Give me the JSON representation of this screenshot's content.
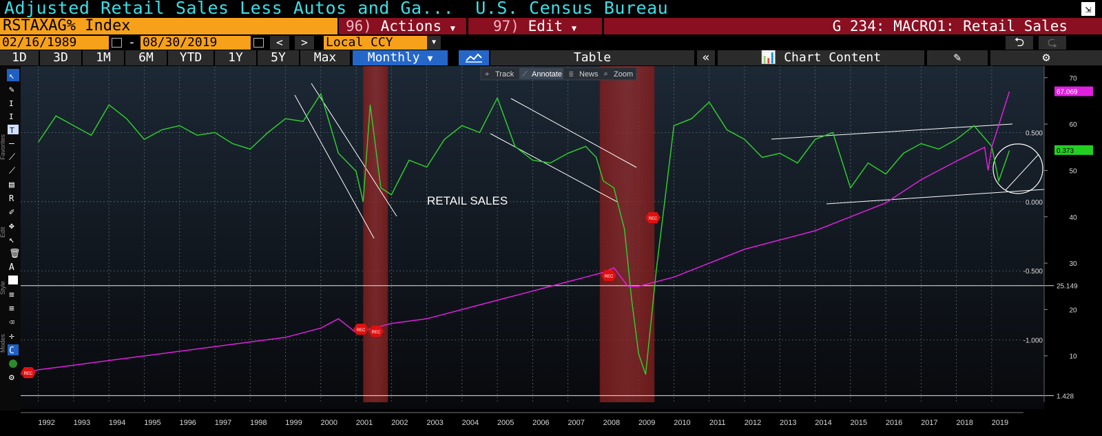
{
  "header": {
    "title": "Adjusted Retail Sales Less Autos and Ga...  U.S. Census Bureau",
    "corner_icon": "export-icon"
  },
  "toolbar": {
    "ticker": "RSTAXAG% Index",
    "actions_num": "96)",
    "actions_label": "Actions",
    "edit_num": "97)",
    "edit_label": "Edit",
    "chart_name": "G 234: MACRO1: Retail Sales"
  },
  "dates": {
    "start": "02/16/1989",
    "separator": "-",
    "end": "08/30/2019",
    "prev": "<",
    "next": ">",
    "currency": "Local CCY"
  },
  "ranges": {
    "items": [
      "1D",
      "3D",
      "1M",
      "6M",
      "YTD",
      "1Y",
      "5Y",
      "Max"
    ],
    "period": "Monthly",
    "table": "Table",
    "collapse": "«",
    "chart_content": "Chart Content"
  },
  "subtoolbar": {
    "track": "Track",
    "annotate": "Annotate",
    "news": "News",
    "zoom": "Zoom"
  },
  "side_labels": {
    "favorites": "Favorites",
    "edit": "Edit",
    "style": "Style",
    "modes": "Modes"
  },
  "chart_data": {
    "type": "line",
    "x_labels": [
      "1992",
      "1993",
      "1994",
      "1995",
      "1996",
      "1997",
      "1998",
      "1999",
      "2000",
      "2001",
      "2002",
      "2003",
      "2004",
      "2005",
      "2006",
      "2007",
      "2008",
      "2009",
      "2010",
      "2011",
      "2012",
      "2013",
      "2014",
      "2015",
      "2016",
      "2017",
      "2018",
      "2019"
    ],
    "xlim": [
      1991.5,
      2019.9
    ],
    "right_axis": {
      "ticks": [
        70,
        60,
        50,
        40,
        30,
        20,
        10
      ],
      "ylim": [
        0,
        72.5
      ]
    },
    "mid_axis": {
      "ticks": [
        "0.500",
        "0.000",
        "-0.500",
        "-1.000"
      ],
      "values": [
        0.5,
        0,
        -0.5,
        -1.0
      ],
      "ylim": [
        -1.45,
        0.98
      ]
    },
    "series": [
      {
        "axis": "mid",
        "color": "#2ecc2e",
        "x": [
          1992.0,
          1992.5,
          1993.0,
          1993.5,
          1994.0,
          1994.5,
          1995.0,
          1995.5,
          1996.0,
          1996.5,
          1997.0,
          1997.5,
          1998.0,
          1998.5,
          1999.0,
          1999.5,
          2000.0,
          2000.5,
          2001.0,
          2001.2,
          2001.4,
          2001.7,
          2002.0,
          2002.5,
          2003.0,
          2003.5,
          2004.0,
          2004.5,
          2005.0,
          2005.5,
          2006.0,
          2006.5,
          2007.0,
          2007.5,
          2007.8,
          2008.0,
          2008.3,
          2008.6,
          2008.8,
          2009.0,
          2009.2,
          2009.5,
          2010.0,
          2010.5,
          2011.0,
          2011.5,
          2012.0,
          2012.5,
          2013.0,
          2013.5,
          2014.0,
          2014.5,
          2015.0,
          2015.5,
          2016.0,
          2016.5,
          2017.0,
          2017.5,
          2018.0,
          2018.5,
          2019.0,
          2019.2,
          2019.5
        ],
        "values": [
          0.43,
          0.62,
          0.55,
          0.48,
          0.7,
          0.6,
          0.45,
          0.52,
          0.55,
          0.48,
          0.5,
          0.42,
          0.38,
          0.5,
          0.6,
          0.58,
          0.78,
          0.35,
          0.22,
          0.0,
          0.7,
          0.1,
          0.05,
          0.3,
          0.25,
          0.45,
          0.55,
          0.5,
          0.75,
          0.4,
          0.3,
          0.28,
          0.35,
          0.4,
          0.32,
          0.15,
          0.1,
          -0.2,
          -0.7,
          -1.1,
          -1.25,
          -0.5,
          0.55,
          0.6,
          0.72,
          0.52,
          0.45,
          0.32,
          0.35,
          0.28,
          0.45,
          0.5,
          0.1,
          0.28,
          0.2,
          0.35,
          0.42,
          0.38,
          0.45,
          0.55,
          0.4,
          0.15,
          0.37
        ]
      },
      {
        "axis": "right",
        "color": "#e020e0",
        "x": [
          1991.5,
          1992.0,
          1993.0,
          1994.0,
          1995.0,
          1996.0,
          1997.0,
          1998.0,
          1999.0,
          2000.0,
          2000.5,
          2001.0,
          2001.5,
          2002.0,
          2003.0,
          2004.0,
          2005.0,
          2006.0,
          2007.0,
          2007.5,
          2008.0,
          2008.3,
          2008.7,
          2009.0,
          2010.0,
          2011.0,
          2012.0,
          2013.0,
          2014.0,
          2015.0,
          2016.0,
          2017.0,
          2018.0,
          2018.8,
          2018.9,
          2019.0,
          2019.5
        ],
        "values": [
          6,
          7,
          8,
          9,
          10,
          11,
          12,
          13,
          14,
          16,
          18,
          15,
          16,
          17,
          18,
          20,
          22,
          24,
          26,
          27,
          28,
          29,
          25,
          25,
          27,
          30,
          33,
          35,
          37,
          40,
          43,
          48,
          52,
          55,
          50,
          55,
          67
        ]
      }
    ],
    "last_values": {
      "magenta": "67.069",
      "green": "0.373",
      "ref_high": "25.149",
      "ref_low": "1.428"
    },
    "recessions": [
      [
        2001.2,
        2001.9
      ],
      [
        2007.9,
        2009.45
      ]
    ],
    "rec_label": "REC",
    "annotation": "RETAIL SALES",
    "hline": 25.149,
    "hline_low": 1.428
  }
}
